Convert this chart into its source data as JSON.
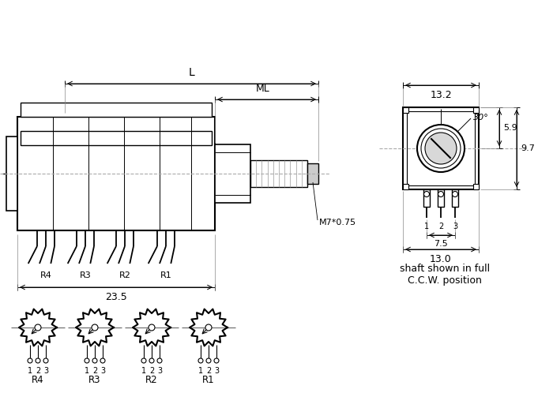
{
  "bg_color": "#ffffff",
  "line_color": "#000000",
  "dashed_color": "#aaaaaa",
  "dim_23_5": "23.5",
  "dim_L": "L",
  "dim_ML": "ML",
  "dim_M7": "M7*0.75",
  "dim_13_2": "13.2",
  "dim_30": "30°",
  "dim_5_9": "5.9",
  "dim_9_7": "9.7",
  "dim_7_5": "7.5",
  "dim_13_0": "13.0",
  "shaft_text": "shaft shown in full\nC.C.W. position",
  "labels_R": [
    "R4",
    "R3",
    "R2",
    "R1"
  ]
}
